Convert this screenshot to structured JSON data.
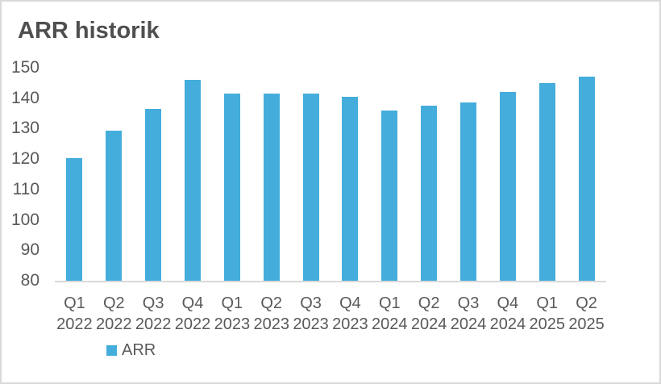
{
  "title": "ARR historik",
  "legend": {
    "label": "ARR",
    "swatch_color": "#44addb"
  },
  "colors": {
    "bar": "#44addb",
    "title_text": "#4f4f4f",
    "axis_text": "#595959",
    "axis_line": "#d9d9d9",
    "canvas_border": "#d9d9d9",
    "background": "#ffffff"
  },
  "chart_data": {
    "type": "bar",
    "title": "ARR historik",
    "categories": [
      "Q1 2022",
      "Q2 2022",
      "Q3 2022",
      "Q4 2022",
      "Q1 2023",
      "Q2 2023",
      "Q3 2023",
      "Q4 2023",
      "Q1 2024",
      "Q2 2024",
      "Q3 2024",
      "Q4 2024",
      "Q1 2025",
      "Q2 2025"
    ],
    "series": [
      {
        "name": "ARR",
        "values": [
          120.4,
          129.4,
          136.6,
          146.0,
          141.5,
          141.6,
          141.5,
          140.4,
          135.9,
          137.6,
          138.6,
          142.1,
          145.0,
          147.0
        ]
      }
    ],
    "xlabel": "",
    "ylabel": "",
    "ylim": [
      80,
      150
    ],
    "yticks": [
      80,
      90,
      100,
      110,
      120,
      130,
      140,
      150
    ],
    "grid": false,
    "gridlines": "none",
    "legend_position": "bottom-left"
  }
}
